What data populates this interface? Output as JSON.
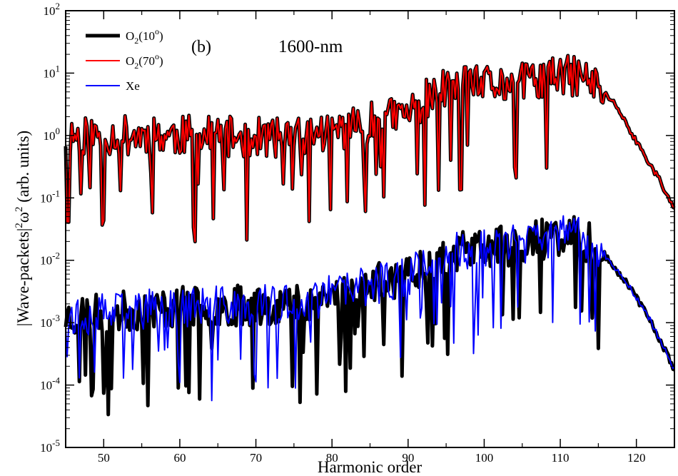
{
  "chart_data": {
    "type": "line",
    "title": "",
    "panel_label": "(b)",
    "annotation": "1600-nm",
    "xlabel": "Harmonic order",
    "ylabel_parts": {
      "base": "|Wave-packets|",
      "sup1": "2",
      "omega": "ω",
      "sup2": "2",
      "units": " (arb. units)"
    },
    "xlim": [
      45,
      125
    ],
    "ylim_log10": [
      -5,
      2
    ],
    "yscale": "log",
    "x_ticks": [
      50,
      60,
      70,
      80,
      90,
      100,
      110,
      120
    ],
    "y_ticks": [
      {
        "base": "10",
        "exp": "2",
        "log": 2
      },
      {
        "base": "10",
        "exp": "1",
        "log": 1
      },
      {
        "base": "10",
        "exp": "0",
        "log": 0
      },
      {
        "base": "10",
        "exp": "-1",
        "log": -1
      },
      {
        "base": "10",
        "exp": "-2",
        "log": -2
      },
      {
        "base": "10",
        "exp": "-3",
        "log": -3
      },
      {
        "base": "10",
        "exp": "-4",
        "log": -4
      },
      {
        "base": "10",
        "exp": "-5",
        "log": -5
      }
    ],
    "x_step": 0.2,
    "series": [
      {
        "name": "O2(10o)",
        "legend": {
          "base": "O",
          "sub": "2",
          "pre": "(10",
          "sup": "o",
          "post": ")"
        },
        "color": "#000000",
        "width": 5,
        "group": "upper",
        "envelope": [
          [
            45,
            0.0
          ],
          [
            60,
            0.0
          ],
          [
            75,
            -0.05
          ],
          [
            85,
            0.2
          ],
          [
            90,
            0.35
          ],
          [
            92,
            0.55
          ],
          [
            95,
            0.75
          ],
          [
            100,
            0.8
          ],
          [
            105,
            0.85
          ],
          [
            110,
            0.95
          ],
          [
            113,
            0.95
          ],
          [
            115,
            0.75
          ],
          [
            117,
            0.55
          ],
          [
            120,
            -0.1
          ],
          [
            123,
            -0.7
          ],
          [
            125,
            -1.2
          ]
        ],
        "seed": 11
      },
      {
        "name": "O2(70o)",
        "legend": {
          "base": "O",
          "sub": "2",
          "pre": "(70",
          "sup": "o",
          "post": ")"
        },
        "color": "#ff0000",
        "width": 2,
        "group": "upper",
        "envelope": [
          [
            45,
            0.0
          ],
          [
            60,
            0.0
          ],
          [
            75,
            -0.05
          ],
          [
            85,
            0.2
          ],
          [
            90,
            0.35
          ],
          [
            92,
            0.55
          ],
          [
            95,
            0.75
          ],
          [
            100,
            0.8
          ],
          [
            105,
            0.85
          ],
          [
            110,
            0.95
          ],
          [
            113,
            0.95
          ],
          [
            115,
            0.75
          ],
          [
            117,
            0.55
          ],
          [
            120,
            -0.1
          ],
          [
            123,
            -0.7
          ],
          [
            125,
            -1.2
          ]
        ],
        "seed": 11
      },
      {
        "name": "O2(10o) lower",
        "legend": null,
        "color": "#000000",
        "width": 5,
        "group": "lower",
        "envelope": [
          [
            45,
            -2.9
          ],
          [
            60,
            -2.75
          ],
          [
            75,
            -2.7
          ],
          [
            85,
            -2.4
          ],
          [
            90,
            -2.25
          ],
          [
            92,
            -2.05
          ],
          [
            95,
            -1.9
          ],
          [
            100,
            -1.8
          ],
          [
            105,
            -1.75
          ],
          [
            110,
            -1.6
          ],
          [
            113,
            -1.65
          ],
          [
            116,
            -1.95
          ],
          [
            119,
            -2.4
          ],
          [
            122,
            -3.0
          ],
          [
            125,
            -3.75
          ]
        ],
        "seed": 23
      },
      {
        "name": "Xe",
        "legend": {
          "base": "Xe",
          "sub": "",
          "pre": "",
          "sup": "",
          "post": ""
        },
        "color": "#0000ff",
        "width": 2,
        "group": "lower",
        "envelope": [
          [
            45,
            -2.9
          ],
          [
            60,
            -2.75
          ],
          [
            75,
            -2.7
          ],
          [
            85,
            -2.4
          ],
          [
            90,
            -2.25
          ],
          [
            92,
            -2.05
          ],
          [
            95,
            -1.9
          ],
          [
            100,
            -1.8
          ],
          [
            105,
            -1.75
          ],
          [
            110,
            -1.6
          ],
          [
            113,
            -1.65
          ],
          [
            116,
            -1.95
          ],
          [
            119,
            -2.4
          ],
          [
            122,
            -3.0
          ],
          [
            125,
            -3.75
          ]
        ],
        "seed": 37
      }
    ]
  }
}
